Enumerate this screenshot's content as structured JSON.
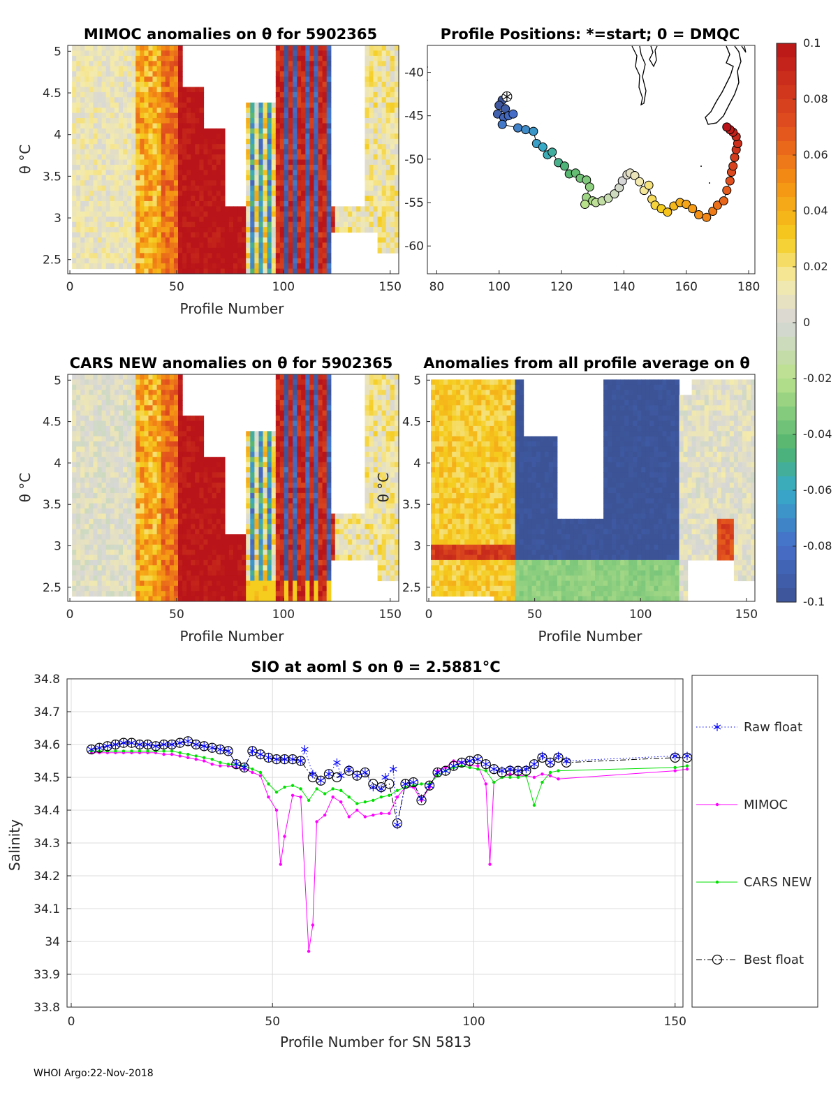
{
  "footer": "WHOI Argo:22-Nov-2018",
  "colorbar": {
    "ticks": [
      "0.1",
      "0.08",
      "0.06",
      "0.04",
      "0.02",
      "0",
      "-0.02",
      "-0.04",
      "-0.06",
      "-0.08",
      "-0.1"
    ],
    "range": [
      -0.1,
      0.1
    ]
  },
  "panels": {
    "mimoc": {
      "title": "MIMOC anomalies on θ  for 5902365",
      "xlabel": "Profile Number",
      "ylabel": "θ °C",
      "xticks": [
        "0",
        "50",
        "100",
        "150"
      ],
      "yticks": [
        "5",
        "4.5",
        "4",
        "3.5",
        "3",
        "2.5"
      ]
    },
    "map": {
      "title": "Profile Positions: *=start; 0 = DMQC",
      "xticks": [
        "80",
        "100",
        "120",
        "140",
        "160",
        "180"
      ],
      "yticks": [
        "-40",
        "-45",
        "-50",
        "-55",
        "-60"
      ]
    },
    "cars": {
      "title": "CARS NEW anomalies on θ for 5902365",
      "xlabel": "Profile Number",
      "ylabel": "θ °C",
      "xticks": [
        "0",
        "50",
        "100",
        "150"
      ],
      "yticks": [
        "5",
        "4.5",
        "4",
        "3.5",
        "3",
        "2.5"
      ]
    },
    "allavg": {
      "title": "Anomalies from all profile average on θ",
      "xlabel": "Profile Number",
      "ylabel": "θ °C",
      "xticks": [
        "0",
        "50",
        "100",
        "150"
      ],
      "yticks": [
        "5",
        "4.5",
        "4",
        "3.5",
        "3",
        "2.5"
      ]
    }
  },
  "chart_data": {
    "type": "line",
    "title": "SIO at aoml S on θ = 2.5881°C",
    "xlabel": "Profile Number for SN 5813",
    "ylabel": "Salinity",
    "xlim": [
      0,
      153
    ],
    "ylim": [
      33.8,
      34.8
    ],
    "xticks": [
      "0",
      "50",
      "100",
      "150"
    ],
    "yticks": [
      "34.8",
      "34.7",
      "34.6",
      "34.5",
      "34.4",
      "34.3",
      "34.2",
      "34.1",
      "34",
      "33.9",
      "33.8"
    ],
    "grid": true,
    "legend_placement": "right",
    "series": [
      {
        "name": "Raw float",
        "color": "#0000ff",
        "marker": "star",
        "dash": "dotted",
        "x": [
          5,
          7,
          9,
          11,
          13,
          15,
          17,
          19,
          21,
          23,
          25,
          27,
          29,
          31,
          33,
          35,
          37,
          39,
          41,
          43,
          45,
          47,
          49,
          51,
          53,
          55,
          57,
          58,
          60,
          62,
          64,
          66,
          67,
          69,
          71,
          73,
          75,
          77,
          78,
          80,
          81,
          83,
          85,
          87,
          89,
          91,
          93,
          95,
          97,
          99,
          101,
          103,
          105,
          107,
          109,
          111,
          113,
          115,
          117,
          119,
          121,
          123,
          150,
          153
        ],
        "y": [
          34.585,
          34.59,
          34.595,
          34.6,
          34.605,
          34.605,
          34.6,
          34.6,
          34.595,
          34.6,
          34.6,
          34.605,
          34.61,
          34.6,
          34.595,
          34.59,
          34.585,
          34.58,
          34.54,
          34.53,
          34.58,
          34.57,
          34.56,
          34.555,
          34.555,
          34.555,
          34.55,
          34.585,
          34.51,
          34.49,
          34.51,
          34.545,
          34.505,
          34.525,
          34.505,
          34.515,
          34.47,
          34.465,
          34.5,
          34.525,
          34.355,
          34.48,
          34.485,
          34.435,
          34.475,
          34.515,
          34.52,
          34.535,
          34.545,
          34.55,
          34.555,
          34.54,
          34.525,
          34.52,
          34.525,
          34.52,
          34.525,
          34.54,
          34.565,
          34.545,
          34.565,
          34.55,
          34.565,
          34.565
        ]
      },
      {
        "name": "MIMOC",
        "color": "#ff00ff",
        "marker": "dot",
        "dash": "solid",
        "x": [
          5,
          7,
          9,
          11,
          13,
          15,
          17,
          19,
          21,
          23,
          25,
          27,
          29,
          31,
          33,
          35,
          37,
          39,
          41,
          43,
          45,
          47,
          49,
          51,
          52,
          53,
          55,
          57,
          59,
          60,
          61,
          63,
          65,
          67,
          69,
          71,
          73,
          75,
          77,
          79,
          81,
          83,
          85,
          87,
          89,
          91,
          93,
          95,
          97,
          99,
          101,
          103,
          104,
          105,
          107,
          109,
          111,
          113,
          115,
          117,
          119,
          121,
          150,
          153
        ],
        "y": [
          34.575,
          34.575,
          34.575,
          34.575,
          34.575,
          34.575,
          34.575,
          34.575,
          34.575,
          34.57,
          34.57,
          34.565,
          34.56,
          34.555,
          34.55,
          34.54,
          34.535,
          34.535,
          34.53,
          34.525,
          34.515,
          34.505,
          34.44,
          34.4,
          34.235,
          34.32,
          34.445,
          34.44,
          33.97,
          34.05,
          34.365,
          34.385,
          34.44,
          34.425,
          34.38,
          34.4,
          34.38,
          34.385,
          34.39,
          34.39,
          34.44,
          34.47,
          34.47,
          34.43,
          34.47,
          34.52,
          34.53,
          34.55,
          34.545,
          34.535,
          34.535,
          34.48,
          34.235,
          34.485,
          34.5,
          34.51,
          34.505,
          34.505,
          34.5,
          34.51,
          34.505,
          34.495,
          34.52,
          34.525
        ]
      },
      {
        "name": "CARS NEW",
        "color": "#00e000",
        "marker": "dot",
        "dash": "solid",
        "x": [
          5,
          7,
          9,
          11,
          13,
          15,
          17,
          19,
          21,
          23,
          25,
          27,
          29,
          31,
          33,
          35,
          37,
          39,
          41,
          43,
          45,
          47,
          49,
          51,
          53,
          55,
          57,
          59,
          61,
          63,
          65,
          67,
          69,
          71,
          73,
          75,
          77,
          79,
          81,
          83,
          85,
          87,
          89,
          91,
          93,
          95,
          97,
          99,
          101,
          103,
          105,
          107,
          109,
          111,
          113,
          115,
          117,
          119,
          121,
          150,
          153
        ],
        "y": [
          34.58,
          34.58,
          34.58,
          34.58,
          34.58,
          34.58,
          34.58,
          34.58,
          34.58,
          34.58,
          34.58,
          34.575,
          34.57,
          34.565,
          34.56,
          34.555,
          34.545,
          34.54,
          34.54,
          34.535,
          34.525,
          34.515,
          34.48,
          34.455,
          34.47,
          34.475,
          34.465,
          34.43,
          34.465,
          34.45,
          34.465,
          34.46,
          34.44,
          34.42,
          34.425,
          34.43,
          34.44,
          34.445,
          34.46,
          34.47,
          34.475,
          34.48,
          34.48,
          34.505,
          34.52,
          34.53,
          34.535,
          34.53,
          34.525,
          34.52,
          34.485,
          34.5,
          34.5,
          34.5,
          34.505,
          34.415,
          34.485,
          34.515,
          34.52,
          34.53,
          34.535
        ]
      },
      {
        "name": "Best float",
        "color": "#000000",
        "marker": "circle",
        "dash": "dashdot",
        "x": [
          5,
          7,
          9,
          11,
          13,
          15,
          17,
          19,
          21,
          23,
          25,
          27,
          29,
          31,
          33,
          35,
          37,
          39,
          41,
          43,
          45,
          47,
          49,
          51,
          53,
          55,
          57,
          60,
          62,
          64,
          66,
          69,
          71,
          73,
          75,
          77,
          79,
          81,
          83,
          85,
          87,
          89,
          91,
          93,
          95,
          97,
          99,
          101,
          103,
          105,
          107,
          109,
          111,
          113,
          115,
          117,
          119,
          121,
          123,
          150,
          153
        ],
        "y": [
          34.585,
          34.59,
          34.595,
          34.6,
          34.605,
          34.605,
          34.6,
          34.6,
          34.595,
          34.6,
          34.6,
          34.605,
          34.61,
          34.6,
          34.595,
          34.59,
          34.585,
          34.58,
          34.54,
          34.53,
          34.58,
          34.57,
          34.56,
          34.555,
          34.555,
          34.555,
          34.55,
          34.5,
          34.49,
          34.51,
          34.5,
          34.52,
          34.505,
          34.515,
          34.48,
          34.47,
          34.48,
          34.36,
          34.48,
          34.485,
          34.43,
          34.475,
          34.515,
          34.52,
          34.535,
          34.545,
          34.55,
          34.555,
          34.54,
          34.525,
          34.515,
          34.52,
          34.52,
          34.52,
          34.54,
          34.56,
          34.545,
          34.56,
          34.545,
          34.56,
          34.56
        ]
      }
    ]
  },
  "map_data": {
    "points": [
      {
        "lon": 101,
        "lat": -43.2
      },
      {
        "lon": 100,
        "lat": -43.8
      },
      {
        "lon": 102,
        "lat": -44.2
      },
      {
        "lon": 99.5,
        "lat": -44.8
      },
      {
        "lon": 101.5,
        "lat": -45.2
      },
      {
        "lon": 103,
        "lat": -45.0
      },
      {
        "lon": 104.5,
        "lat": -44.8
      },
      {
        "lon": 101,
        "lat": -46
      },
      {
        "lon": 106,
        "lat": -46.4
      },
      {
        "lon": 108.5,
        "lat": -46.6
      },
      {
        "lon": 111,
        "lat": -46.8
      },
      {
        "lon": 112,
        "lat": -48.2
      },
      {
        "lon": 114,
        "lat": -48.6
      },
      {
        "lon": 115.5,
        "lat": -49.5
      },
      {
        "lon": 117,
        "lat": -49.2
      },
      {
        "lon": 119,
        "lat": -50.4
      },
      {
        "lon": 121,
        "lat": -50.8
      },
      {
        "lon": 122.5,
        "lat": -51.7
      },
      {
        "lon": 124.5,
        "lat": -51.6
      },
      {
        "lon": 126,
        "lat": -52.2
      },
      {
        "lon": 128,
        "lat": -52.4
      },
      {
        "lon": 129,
        "lat": -53.2
      },
      {
        "lon": 128,
        "lat": -54.4
      },
      {
        "lon": 130,
        "lat": -54.8
      },
      {
        "lon": 127.5,
        "lat": -55.2
      },
      {
        "lon": 131,
        "lat": -55.0
      },
      {
        "lon": 133,
        "lat": -54.8
      },
      {
        "lon": 135,
        "lat": -54.5
      },
      {
        "lon": 137,
        "lat": -54.0
      },
      {
        "lon": 138.5,
        "lat": -53.3
      },
      {
        "lon": 139.5,
        "lat": -52.5
      },
      {
        "lon": 141,
        "lat": -51.8
      },
      {
        "lon": 142,
        "lat": -51.6
      },
      {
        "lon": 143.5,
        "lat": -51.9
      },
      {
        "lon": 145,
        "lat": -52.6
      },
      {
        "lon": 146.5,
        "lat": -53.6
      },
      {
        "lon": 148,
        "lat": -53.0
      },
      {
        "lon": 149,
        "lat": -54.6
      },
      {
        "lon": 150,
        "lat": -55.3
      },
      {
        "lon": 152,
        "lat": -55.7
      },
      {
        "lon": 154,
        "lat": -56.1
      },
      {
        "lon": 156,
        "lat": -55.4
      },
      {
        "lon": 158,
        "lat": -55.0
      },
      {
        "lon": 160,
        "lat": -55.2
      },
      {
        "lon": 162,
        "lat": -55.7
      },
      {
        "lon": 164,
        "lat": -56.4
      },
      {
        "lon": 166.5,
        "lat": -56.7
      },
      {
        "lon": 168.5,
        "lat": -56.0
      },
      {
        "lon": 170,
        "lat": -55.3
      },
      {
        "lon": 172,
        "lat": -54.8
      },
      {
        "lon": 173,
        "lat": -53.6
      },
      {
        "lon": 174,
        "lat": -52.5
      },
      {
        "lon": 174.5,
        "lat": -51.5
      },
      {
        "lon": 175,
        "lat": -50.8
      },
      {
        "lon": 175.5,
        "lat": -49.8
      },
      {
        "lon": 176,
        "lat": -48.9
      },
      {
        "lon": 176.5,
        "lat": -48.2
      },
      {
        "lon": 176,
        "lat": -47.4
      },
      {
        "lon": 175,
        "lat": -46.9
      },
      {
        "lon": 174,
        "lat": -46.6
      },
      {
        "lon": 173,
        "lat": -46.3
      }
    ],
    "start": {
      "lon": 102.5,
      "lat": -42.8
    }
  }
}
